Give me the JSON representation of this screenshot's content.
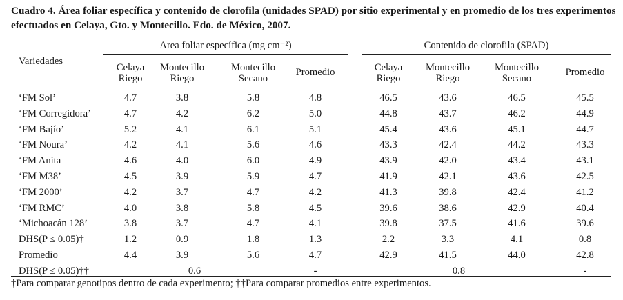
{
  "caption": "Cuadro 4. Área foliar específica y contenido de clorofila (unidades SPAD) por sitio experimental y en promedio de los tres experimentos efectuados en Celaya, Gto. y Montecillo. Edo. de México, 2007.",
  "table": {
    "row_header": "Variedades",
    "group1_header": "Area foliar específica (mg cm⁻²)",
    "group2_header": "Contenido de clorofila (SPAD)",
    "columns": [
      "Celaya Riego",
      "Montecillo Riego",
      "Montecillo Secano",
      "Promedio",
      "Celaya Riego",
      "Montecillo Riego",
      "Montecillo Secano",
      "Promedio"
    ],
    "col_lines": [
      [
        "Celaya",
        "Riego"
      ],
      [
        "Montecillo",
        "Riego"
      ],
      [
        "Montecillo",
        "Secano"
      ],
      [
        "Promedio",
        ""
      ],
      [
        "Celaya",
        "Riego"
      ],
      [
        "Montecillo",
        "Riego"
      ],
      [
        "Montecillo",
        "Secano"
      ],
      [
        "Promedio",
        ""
      ]
    ],
    "rows": [
      {
        "label": "‘FM Sol’",
        "values": [
          "4.7",
          "3.8",
          "5.8",
          "4.8",
          "46.5",
          "43.6",
          "46.5",
          "45.5"
        ]
      },
      {
        "label": "‘FM Corregidora’",
        "values": [
          "4.7",
          "4.2",
          "6.2",
          "5.0",
          "44.8",
          "43.7",
          "46.2",
          "44.9"
        ]
      },
      {
        "label": "‘FM Bajío’",
        "values": [
          "5.2",
          "4.1",
          "6.1",
          "5.1",
          "45.4",
          "43.6",
          "45.1",
          "44.7"
        ]
      },
      {
        "label": "‘FM Noura’",
        "values": [
          "4.2",
          "4.1",
          "5.6",
          "4.6",
          "43.3",
          "42.4",
          "44.2",
          "43.3"
        ]
      },
      {
        "label": "‘FM Anita",
        "values": [
          "4.6",
          "4.0",
          "6.0",
          "4.9",
          "43.9",
          "42.0",
          "43.4",
          "43.1"
        ]
      },
      {
        "label": "‘FM M38’",
        "values": [
          "4.5",
          "3.9",
          "5.9",
          "4.7",
          "41.9",
          "42.1",
          "43.6",
          "42.5"
        ]
      },
      {
        "label": "‘FM 2000’",
        "values": [
          "4.2",
          "3.7",
          "4.7",
          "4.2",
          "41.3",
          "39.8",
          "42.4",
          "41.2"
        ]
      },
      {
        "label": "‘FM RMC’",
        "values": [
          "4.0",
          "3.8",
          "5.8",
          "4.5",
          "39.6",
          "38.6",
          "42.9",
          "40.4"
        ]
      },
      {
        "label": "‘Michoacán 128’",
        "values": [
          "3.8",
          "3.7",
          "4.7",
          "4.1",
          "39.8",
          "37.5",
          "41.6",
          "39.6"
        ]
      },
      {
        "label": "DHS(P ≤ 0.05)†",
        "values": [
          "1.2",
          "0.9",
          "1.8",
          "1.3",
          "2.2",
          "3.3",
          "4.1",
          "0.8"
        ]
      },
      {
        "label": "Promedio",
        "values": [
          "4.4",
          "3.9",
          "5.6",
          "4.7",
          "42.9",
          "41.5",
          "44.0",
          "42.8"
        ]
      }
    ],
    "last_row": {
      "label": "DHS(P ≤ 0.05)††",
      "group1_value": "0.6",
      "group1_dash": "-",
      "group2_value": "0.8",
      "group2_dash": "-"
    }
  },
  "footnote": "†Para comparar genotipos dentro de cada experimento; ††Para comparar promedios entre experimentos."
}
